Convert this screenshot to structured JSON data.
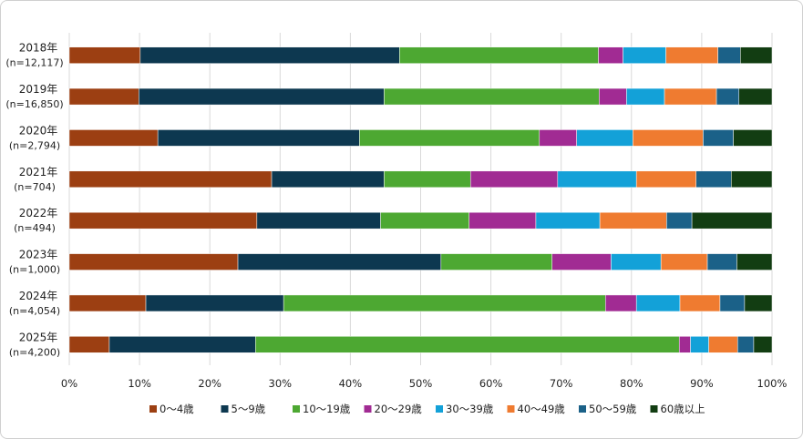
{
  "chart_data": {
    "type": "bar",
    "orientation": "horizontal",
    "stacked": "percent",
    "categories": [
      {
        "label": "2018年",
        "n": "(n=12,117)"
      },
      {
        "label": "2019年",
        "n": "(n=16,850)"
      },
      {
        "label": "2020年",
        "n": "(n=2,794)"
      },
      {
        "label": "2021年",
        "n": "(n=704)"
      },
      {
        "label": "2022年",
        "n": "(n=494)"
      },
      {
        "label": "2023年",
        "n": "(n=1,000)"
      },
      {
        "label": "2024年",
        "n": "(n=4,054)"
      },
      {
        "label": "2025年",
        "n": "(n=4,200)"
      }
    ],
    "series": [
      {
        "name": "0～4歳",
        "color": "#9c3f12",
        "values": [
          10.1,
          9.9,
          12.6,
          28.8,
          26.7,
          24.0,
          10.9,
          5.7
        ]
      },
      {
        "name": "5～9歳",
        "color": "#0d3850",
        "values": [
          36.9,
          34.9,
          28.7,
          16.0,
          17.6,
          28.9,
          19.6,
          20.8
        ]
      },
      {
        "name": "10～19歳",
        "color": "#4da832",
        "values": [
          28.3,
          30.6,
          25.6,
          12.3,
          12.6,
          15.8,
          45.8,
          60.3
        ]
      },
      {
        "name": "20～29歳",
        "color": "#a12b93",
        "values": [
          3.5,
          3.9,
          5.3,
          12.4,
          9.5,
          8.4,
          4.4,
          1.6
        ]
      },
      {
        "name": "30～39歳",
        "color": "#13a1d8",
        "values": [
          6.1,
          5.4,
          8.0,
          11.2,
          9.1,
          7.1,
          6.2,
          2.6
        ]
      },
      {
        "name": "40～49歳",
        "color": "#ef7b30",
        "values": [
          7.4,
          7.4,
          10.0,
          8.5,
          9.5,
          6.6,
          5.7,
          4.1
        ]
      },
      {
        "name": "50～59歳",
        "color": "#1b6188",
        "values": [
          3.2,
          3.2,
          4.3,
          5.0,
          3.6,
          4.2,
          3.5,
          2.3
        ]
      },
      {
        "name": "60歳以上",
        "color": "#123d12",
        "values": [
          4.5,
          4.7,
          5.5,
          5.8,
          11.4,
          5.0,
          3.9,
          2.6
        ]
      }
    ],
    "xlim": [
      0,
      100
    ],
    "xticks": [
      "0%",
      "10%",
      "20%",
      "30%",
      "40%",
      "50%",
      "60%",
      "70%",
      "80%",
      "90%",
      "100%"
    ],
    "grid": "vertical",
    "legend": "bottom",
    "title": "",
    "xlabel": "",
    "ylabel": ""
  }
}
